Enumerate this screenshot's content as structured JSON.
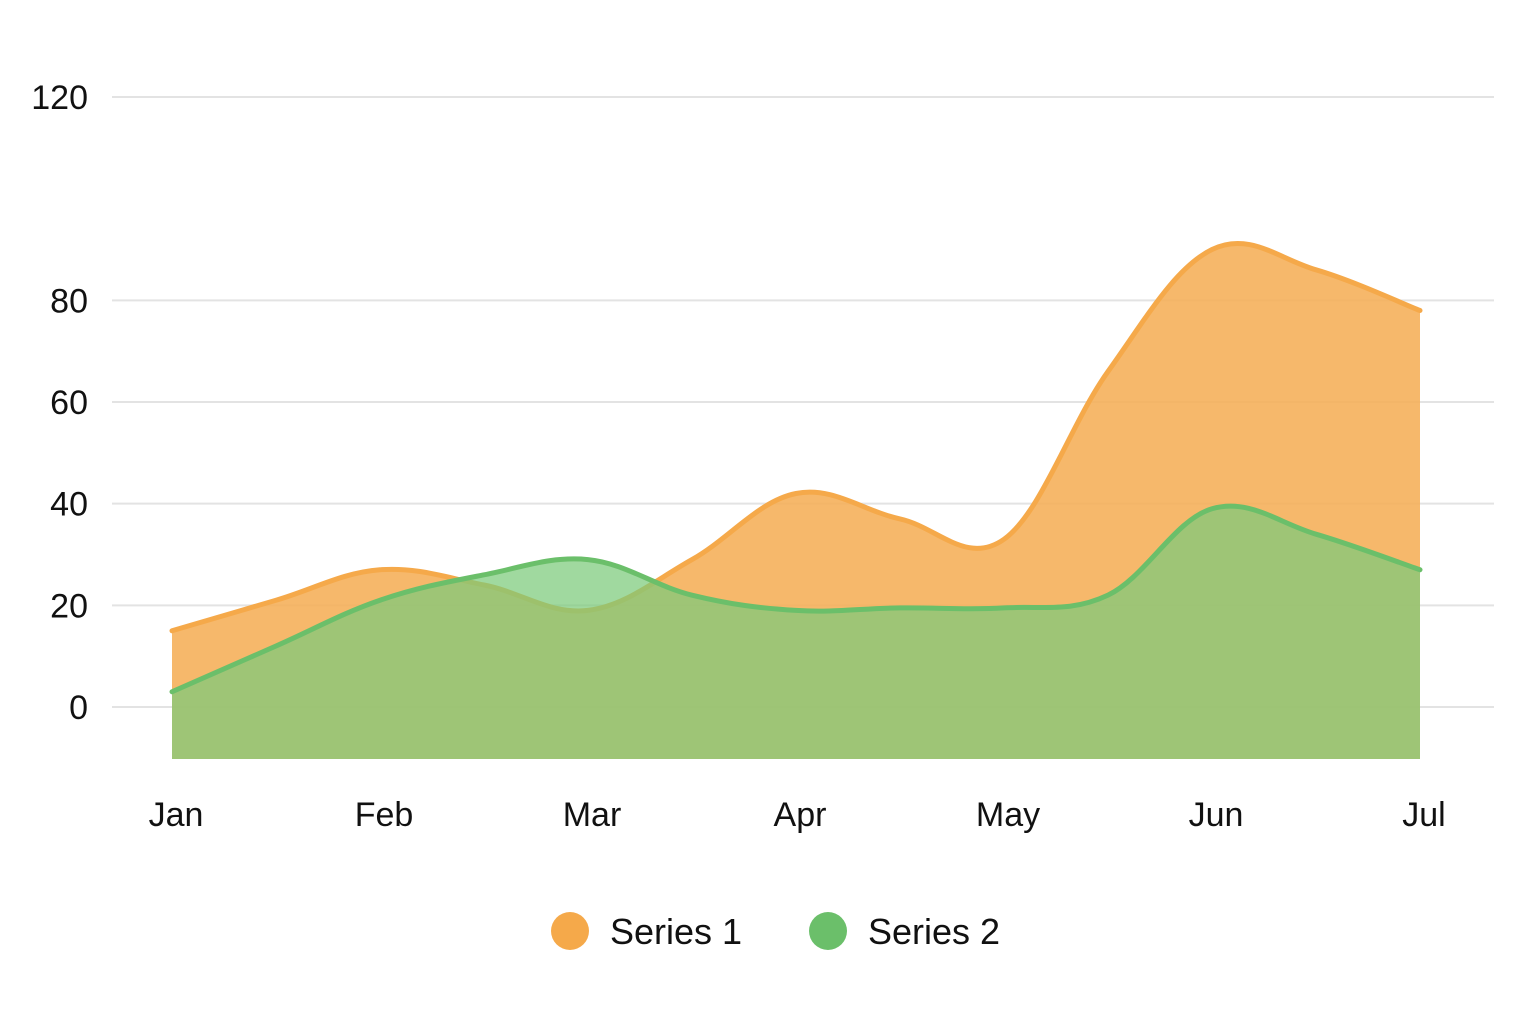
{
  "chart_data": {
    "type": "area",
    "title": "",
    "xlabel": "",
    "ylabel": "",
    "categories": [
      "Jan",
      "Feb",
      "Mar",
      "Apr",
      "May",
      "Jun",
      "Jul"
    ],
    "y_ticks": [
      0,
      20,
      40,
      60,
      80,
      120
    ],
    "ylim": [
      -8,
      123
    ],
    "grid": true,
    "legend_position": "bottom-center",
    "series": [
      {
        "name": "Series 1",
        "color": "#F5A94A",
        "x": [
          0,
          0.5,
          1,
          1.5,
          2,
          2.5,
          3,
          3.5,
          4,
          4.5,
          5,
          5.5,
          6
        ],
        "values": [
          15,
          21,
          27,
          24,
          19,
          29,
          42,
          37,
          33,
          66,
          90,
          86,
          78
        ]
      },
      {
        "name": "Series 2",
        "color": "#6BBF6A",
        "x": [
          0,
          0.5,
          1,
          1.5,
          2,
          2.5,
          3,
          3.5,
          4,
          4.5,
          5,
          5.5,
          6
        ],
        "values": [
          3,
          12,
          21,
          26,
          29,
          22,
          19,
          19.5,
          19.5,
          22,
          39,
          34,
          27
        ]
      }
    ]
  }
}
